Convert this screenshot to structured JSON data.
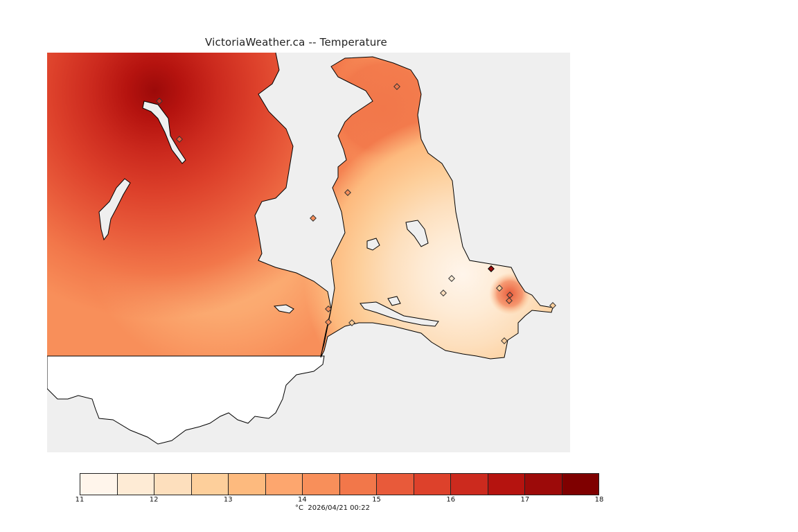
{
  "title": "VictoriaWeather.ca -- Temperature",
  "map": {
    "background_color": "#efefef",
    "land_outline_color": "#000000",
    "stations_count": 16
  },
  "legend": {
    "unit": "°C",
    "timestamp": "2026/04/21 00:22",
    "ticks": [
      "11",
      "12",
      "13",
      "14",
      "15",
      "16",
      "17",
      "18"
    ],
    "colors": [
      "#fff5eb",
      "#feebd5",
      "#fddfbd",
      "#fdcf9b",
      "#fdba7e",
      "#fda66e",
      "#f88f5a",
      "#f2774a",
      "#e85a3a",
      "#dd412b",
      "#cc2a1e",
      "#b5130f",
      "#9c0a09",
      "#7f0000"
    ]
  }
}
